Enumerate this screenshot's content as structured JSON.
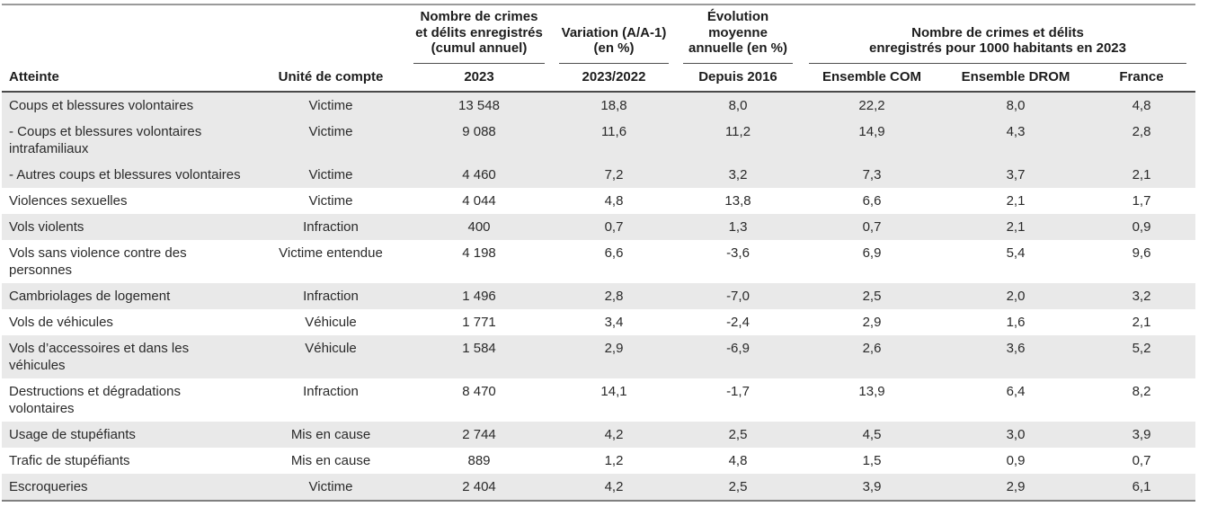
{
  "chart_data": {
    "type": "table",
    "column_groups": [
      {
        "label": "",
        "span": 2
      },
      {
        "label": "Nombre de crimes\net délits enregistrés\n(cumul annuel)",
        "span": 1
      },
      {
        "label": "Variation (A/A-1)\n(en %)",
        "span": 1
      },
      {
        "label": "Évolution\nmoyenne\nannuelle (en %)",
        "span": 1
      },
      {
        "label": "Nombre de crimes et délits\nenregistrés pour 1000 habitants en 2023",
        "span": 3
      }
    ],
    "columns": [
      "Atteinte",
      "Unité de compte",
      "2023",
      "2023/2022",
      "Depuis 2016",
      "Ensemble COM",
      "Ensemble DROM",
      "France"
    ],
    "rows": [
      {
        "atteinte": "Coups et blessures volontaires",
        "unite": "Victime",
        "n2023": "13 548",
        "variation": "18,8",
        "evolution": "8,0",
        "com": "22,2",
        "drom": "8,0",
        "france": "4,8"
      },
      {
        "atteinte": "- Coups et blessures volontaires intrafamiliaux",
        "unite": "Victime",
        "n2023": "9 088",
        "variation": "11,6",
        "evolution": "11,2",
        "com": "14,9",
        "drom": "4,3",
        "france": "2,8"
      },
      {
        "atteinte": "- Autres coups et blessures volontaires",
        "unite": "Victime",
        "n2023": "4 460",
        "variation": "7,2",
        "evolution": "3,2",
        "com": "7,3",
        "drom": "3,7",
        "france": "2,1"
      },
      {
        "atteinte": "Violences sexuelles",
        "unite": "Victime",
        "n2023": "4 044",
        "variation": "4,8",
        "evolution": "13,8",
        "com": "6,6",
        "drom": "2,1",
        "france": "1,7"
      },
      {
        "atteinte": "Vols violents",
        "unite": "Infraction",
        "n2023": "400",
        "variation": "0,7",
        "evolution": "1,3",
        "com": "0,7",
        "drom": "2,1",
        "france": "0,9"
      },
      {
        "atteinte": "Vols sans violence contre des personnes",
        "unite": "Victime entendue",
        "n2023": "4 198",
        "variation": "6,6",
        "evolution": "-3,6",
        "com": "6,9",
        "drom": "5,4",
        "france": "9,6"
      },
      {
        "atteinte": "Cambriolages de logement",
        "unite": "Infraction",
        "n2023": "1 496",
        "variation": "2,8",
        "evolution": "-7,0",
        "com": "2,5",
        "drom": "2,0",
        "france": "3,2"
      },
      {
        "atteinte": "Vols de véhicules",
        "unite": "Véhicule",
        "n2023": "1 771",
        "variation": "3,4",
        "evolution": "-2,4",
        "com": "2,9",
        "drom": "1,6",
        "france": "2,1"
      },
      {
        "atteinte": "Vols d’accessoires et dans les véhicules",
        "unite": "Véhicule",
        "n2023": "1 584",
        "variation": "2,9",
        "evolution": "-6,9",
        "com": "2,6",
        "drom": "3,6",
        "france": "5,2"
      },
      {
        "atteinte": "Destructions et dégradations volontaires",
        "unite": "Infraction",
        "n2023": "8 470",
        "variation": "14,1",
        "evolution": "-1,7",
        "com": "13,9",
        "drom": "6,4",
        "france": "8,2"
      },
      {
        "atteinte": "Usage de stupéfiants",
        "unite": "Mis en cause",
        "n2023": "2 744",
        "variation": "4,2",
        "evolution": "2,5",
        "com": "4,5",
        "drom": "3,0",
        "france": "3,9"
      },
      {
        "atteinte": "Trafic de stupéfiants",
        "unite": "Mis en cause",
        "n2023": "889",
        "variation": "1,2",
        "evolution": "4,8",
        "com": "1,5",
        "drom": "0,9",
        "france": "0,7"
      },
      {
        "atteinte": "Escroqueries",
        "unite": "Victime",
        "n2023": "2 404",
        "variation": "4,2",
        "evolution": "2,5",
        "com": "3,9",
        "drom": "2,9",
        "france": "6,1"
      }
    ]
  }
}
